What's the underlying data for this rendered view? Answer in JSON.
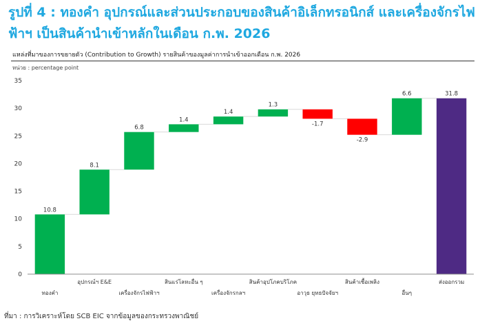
{
  "figure": {
    "title": "รูปที่ 4 : ทองคำ อุปกรณ์และส่วนประกอบของสินค้าอิเล็กทรอนิกส์ และเครื่องจักรไฟฟ้าฯ เป็นสินค้านำเข้าหลักในเดือน ก.พ. 2026",
    "source": "ที่มา : การวิเคราะห์โดย SCB EIC จากข้อมูลของกระทรวงพาณิชย์"
  },
  "colors": {
    "title": "#1fa8e0",
    "positive": "#00b050",
    "negative": "#ff0000",
    "total": "#4e2a84",
    "connector": "#d9d9d9"
  },
  "chart_data": {
    "type": "bar",
    "subtype": "waterfall",
    "title": "แหล่งที่มาของการขยายตัว (Contribution to Growth) รายสินค้าของมูลค่าการนำเข้าออกเดือน ก.พ. 2026",
    "ylabel": "หน่วย : percentage point",
    "xlabel": "",
    "ylim": [
      0,
      35
    ],
    "yticks": [
      0,
      5,
      10,
      15,
      20,
      25,
      30,
      35
    ],
    "grid": false,
    "legend": "none",
    "categories": [
      "ทองคำ",
      "อุปกรณ์ฯ E&E",
      "เครื่องจักรไฟฟ้าฯ",
      "สินแร่โลหะอื่น ๆ",
      "เครื่องจักรกลฯ",
      "สินค้าอุปโภคบริโภค",
      "อาวุธ ยุทธปัจจัยฯ",
      "สินค้าเชื้อเพลิง",
      "อื่นๆ",
      "ส่งออกรวม"
    ],
    "values": [
      10.8,
      8.1,
      6.8,
      1.4,
      1.4,
      1.3,
      -1.7,
      -2.9,
      6.6,
      31.8
    ],
    "value_labels": [
      "10.8",
      "8.1",
      "6.8",
      "1.4",
      "1.4",
      "1.3",
      "-1.7",
      "-2.9",
      "6.6",
      "31.8"
    ],
    "is_total": [
      false,
      false,
      false,
      false,
      false,
      false,
      false,
      false,
      false,
      true
    ]
  }
}
